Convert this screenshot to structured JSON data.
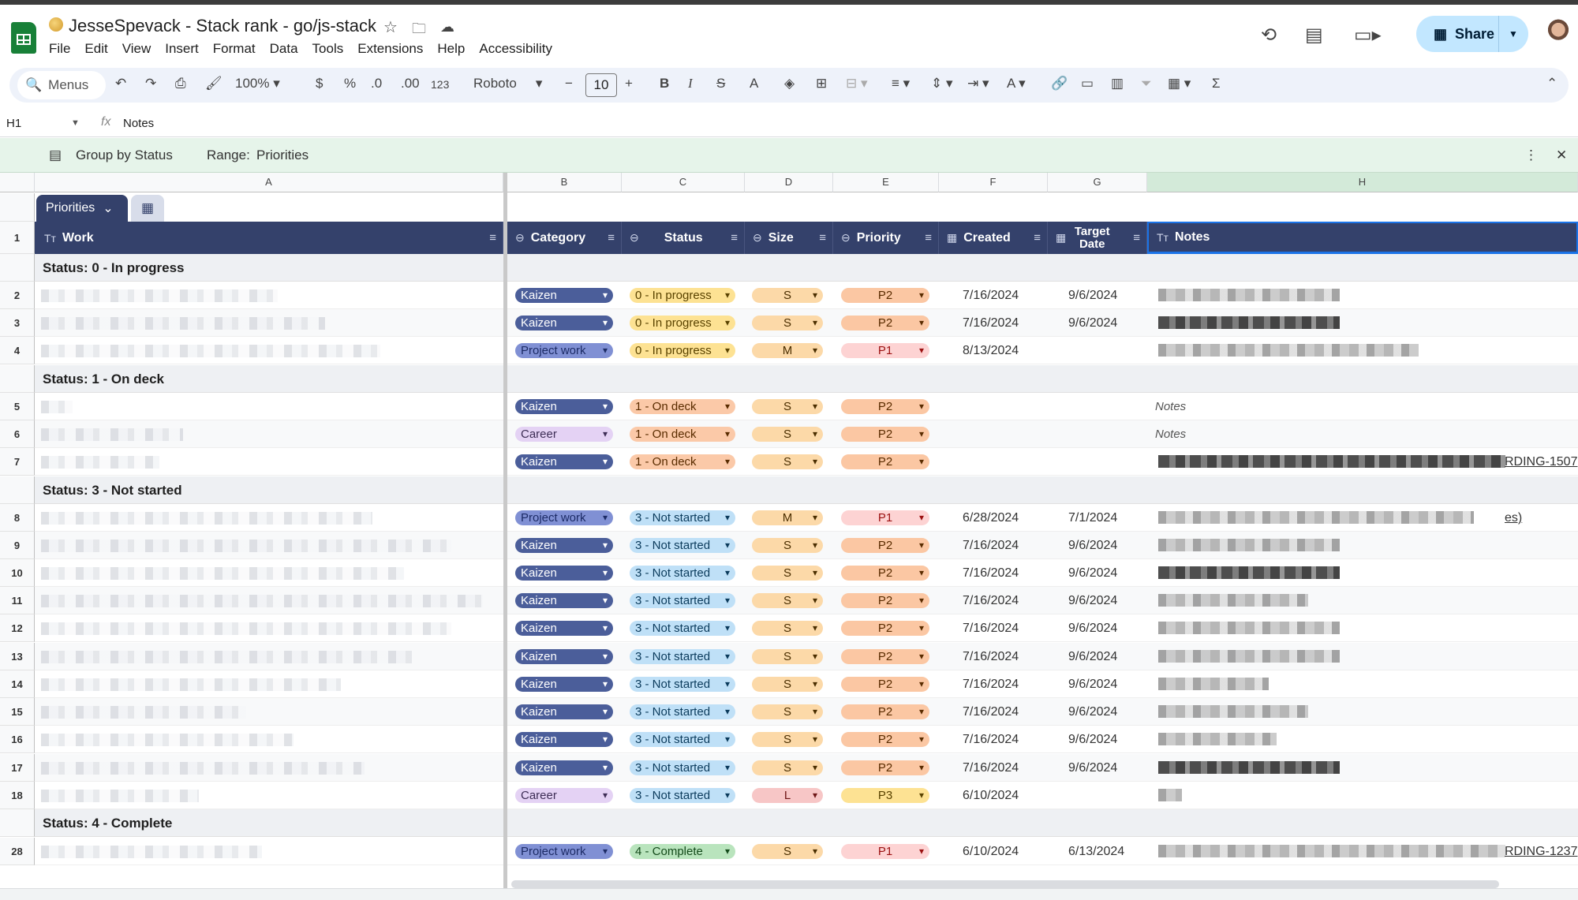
{
  "window": {
    "title": "JesseSpevack - Stack rank - go/js-stack"
  },
  "menu": [
    "File",
    "Edit",
    "View",
    "Insert",
    "Format",
    "Data",
    "Tools",
    "Extensions",
    "Help",
    "Accessibility"
  ],
  "header": {
    "share_label": "Share"
  },
  "toolbar": {
    "search_label": "Menus",
    "zoom": "100%",
    "currency": "$",
    "percent": "%",
    "dec_decrease": ".0",
    "dec_increase": ".00",
    "number_format": "123",
    "font": "Roboto",
    "font_size": "10",
    "bold": "B",
    "italic": "I",
    "strike": "S",
    "text_color": "A"
  },
  "formula_bar": {
    "cell_ref": "H1",
    "fx": "fx",
    "value": "Notes"
  },
  "table_bar": {
    "group_label": "Group by Status",
    "range_label": "Range:",
    "range_value": "Priorities"
  },
  "columns": [
    "A",
    "B",
    "C",
    "D",
    "E",
    "F",
    "G",
    "H"
  ],
  "table": {
    "name": "Priorities",
    "headers": {
      "work": "Work",
      "category": "Category",
      "status": "Status",
      "size": "Size",
      "priority": "Priority",
      "created": "Created",
      "target": "Target Date",
      "notes": "Notes"
    },
    "groups": {
      "g0": "Status: 0 - In progress",
      "g1": "Status: 1 - On deck",
      "g3": "Status: 3 - Not started",
      "g4": "Status: 4 - Complete"
    },
    "rows": [
      {
        "num": "2",
        "category": "Kaizen",
        "status": "0 - In progress",
        "size": "S",
        "priority": "P2",
        "created": "7/16/2024",
        "target": "9/6/2024",
        "notes": ""
      },
      {
        "num": "3",
        "category": "Kaizen",
        "status": "0 - In progress",
        "size": "S",
        "priority": "P2",
        "created": "7/16/2024",
        "target": "9/6/2024",
        "notes": ""
      },
      {
        "num": "4",
        "category": "Project work",
        "status": "0 - In progress",
        "size": "M",
        "priority": "P1",
        "created": "8/13/2024",
        "target": "",
        "notes": ""
      },
      {
        "num": "5",
        "category": "Kaizen",
        "status": "1 - On deck",
        "size": "S",
        "priority": "P2",
        "created": "",
        "target": "",
        "notes": "Notes"
      },
      {
        "num": "6",
        "category": "Career",
        "status": "1 - On deck",
        "size": "S",
        "priority": "P2",
        "created": "",
        "target": "",
        "notes": "Notes"
      },
      {
        "num": "7",
        "category": "Kaizen",
        "status": "1 - On deck",
        "size": "S",
        "priority": "P2",
        "created": "",
        "target": "",
        "notes": "RDING-1507"
      },
      {
        "num": "8",
        "category": "Project work",
        "status": "3 - Not started",
        "size": "M",
        "priority": "P1",
        "created": "6/28/2024",
        "target": "7/1/2024",
        "notes": "es)"
      },
      {
        "num": "9",
        "category": "Kaizen",
        "status": "3 - Not started",
        "size": "S",
        "priority": "P2",
        "created": "7/16/2024",
        "target": "9/6/2024",
        "notes": ""
      },
      {
        "num": "10",
        "category": "Kaizen",
        "status": "3 - Not started",
        "size": "S",
        "priority": "P2",
        "created": "7/16/2024",
        "target": "9/6/2024",
        "notes": ""
      },
      {
        "num": "11",
        "category": "Kaizen",
        "status": "3 - Not started",
        "size": "S",
        "priority": "P2",
        "created": "7/16/2024",
        "target": "9/6/2024",
        "notes": ""
      },
      {
        "num": "12",
        "category": "Kaizen",
        "status": "3 - Not started",
        "size": "S",
        "priority": "P2",
        "created": "7/16/2024",
        "target": "9/6/2024",
        "notes": ""
      },
      {
        "num": "13",
        "category": "Kaizen",
        "status": "3 - Not started",
        "size": "S",
        "priority": "P2",
        "created": "7/16/2024",
        "target": "9/6/2024",
        "notes": ""
      },
      {
        "num": "14",
        "category": "Kaizen",
        "status": "3 - Not started",
        "size": "S",
        "priority": "P2",
        "created": "7/16/2024",
        "target": "9/6/2024",
        "notes": ""
      },
      {
        "num": "15",
        "category": "Kaizen",
        "status": "3 - Not started",
        "size": "S",
        "priority": "P2",
        "created": "7/16/2024",
        "target": "9/6/2024",
        "notes": ""
      },
      {
        "num": "16",
        "category": "Kaizen",
        "status": "3 - Not started",
        "size": "S",
        "priority": "P2",
        "created": "7/16/2024",
        "target": "9/6/2024",
        "notes": ""
      },
      {
        "num": "17",
        "category": "Kaizen",
        "status": "3 - Not started",
        "size": "S",
        "priority": "P2",
        "created": "7/16/2024",
        "target": "9/6/2024",
        "notes": ""
      },
      {
        "num": "18",
        "category": "Career",
        "status": "3 - Not started",
        "size": "L",
        "priority": "P3",
        "created": "6/10/2024",
        "target": "",
        "notes": ""
      },
      {
        "num": "28",
        "category": "Project work",
        "status": "4 - Complete",
        "size": "S",
        "priority": "P1",
        "created": "6/10/2024",
        "target": "6/13/2024",
        "notes": "RDING-1237"
      }
    ]
  }
}
